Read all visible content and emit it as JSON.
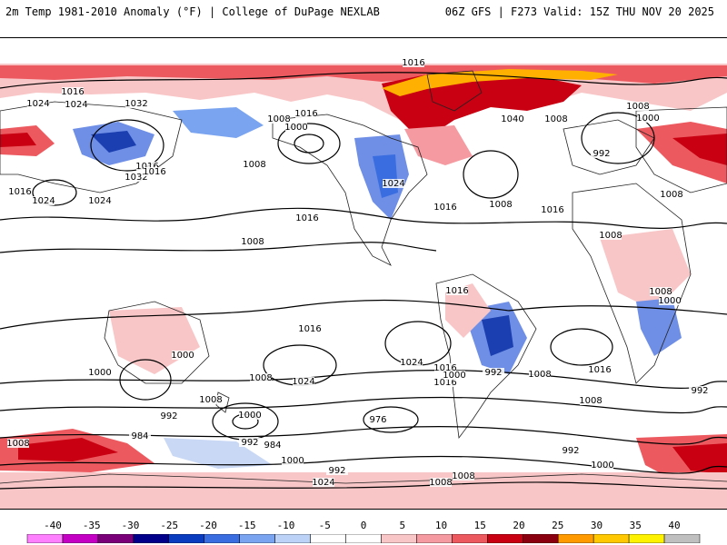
{
  "header": {
    "title_left": "2m Temp 1981-2010 Anomaly (°F) | College of DuPage NEXLAB",
    "title_right": "06Z GFS | F273 Valid: 15Z THU NOV 20 2025"
  },
  "map": {
    "isobar_labels": [
      "1016",
      "1024",
      "1032",
      "1016",
      "1024",
      "1008",
      "1016",
      "1000",
      "1016",
      "1024",
      "1032",
      "1040",
      "1008",
      "1000",
      "992",
      "1016",
      "1024",
      "1016",
      "1008",
      "1016",
      "1024",
      "1008",
      "1016",
      "1008",
      "1016",
      "1008",
      "1008",
      "1008",
      "1008",
      "1016",
      "1000",
      "1016",
      "1024",
      "1016",
      "1024",
      "1016",
      "1008",
      "1000",
      "1008",
      "1000",
      "992",
      "1016",
      "1008",
      "1000",
      "984",
      "992",
      "976",
      "984",
      "992",
      "1000",
      "1024",
      "1008",
      "992",
      "1008",
      "992",
      "1000",
      "992",
      "1008",
      "1000",
      "1008"
    ],
    "colors": {
      "land_outline": "#222222",
      "isobar": "#000000",
      "warm_light": "#f9c6c7",
      "warm_mid": "#ef6a6d",
      "warm_dark": "#c30010",
      "warm_extreme": "#ffb000",
      "cold_light": "#c9d8f5",
      "cold_mid": "#6f8fe6",
      "cold_dark": "#1b3fb0"
    }
  },
  "colorbar": {
    "ticks": [
      "-40",
      "-35",
      "-30",
      "-25",
      "-20",
      "-15",
      "-10",
      "-5",
      "0",
      "5",
      "10",
      "15",
      "20",
      "25",
      "30",
      "35",
      "40"
    ],
    "colors": [
      "#ff80ff",
      "#c400c4",
      "#7a007a",
      "#00008a",
      "#0a3cc0",
      "#3a6ee0",
      "#7aa4ef",
      "#bcd2f7",
      "#ffffff",
      "#ffffff",
      "#f9c6c7",
      "#f49aa0",
      "#ec5a60",
      "#c80012",
      "#8a0010",
      "#ff9a00",
      "#ffc800",
      "#fff200",
      "#bfbfbf"
    ]
  }
}
